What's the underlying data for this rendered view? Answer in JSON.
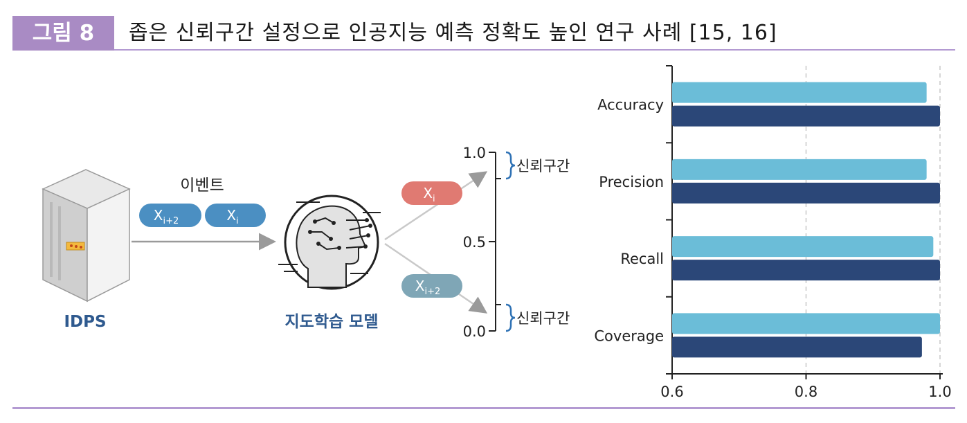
{
  "figure": {
    "label": "그림 8",
    "title": "좁은 신뢰구간 설정으로 인공지능 예측 정확도 높인 연구 사례 [15, 16]",
    "colors": {
      "label_bg": "#a98bc4",
      "rule": "#b39ad2"
    }
  },
  "diagram": {
    "source_label": "IDPS",
    "event_label": "이벤트",
    "events": [
      {
        "main": "X",
        "sub": "i+2"
      },
      {
        "main": "X",
        "sub": "i"
      }
    ],
    "model_label": "지도학습 모델",
    "outputs": [
      {
        "main": "X",
        "sub": "i",
        "color": "#e07a72"
      },
      {
        "main": "X",
        "sub": "i+2",
        "color": "#7fa6b6"
      }
    ],
    "scale_ticks": [
      "1.0",
      "0.5",
      "0.0"
    ],
    "bracket_label": "신뢰구간",
    "colors": {
      "event_pill": "#4b8fc2",
      "label_dark": "#2f5a8f",
      "bracket": "#2f72b5",
      "arrow": "#9a9a9a"
    }
  },
  "chart_data": {
    "type": "bar",
    "orientation": "horizontal",
    "categories": [
      "Accuracy",
      "Precision",
      "Recall",
      "Coverage"
    ],
    "series": [
      {
        "color": "#6bbdd8",
        "values": [
          0.98,
          0.98,
          0.99,
          1.0
        ]
      },
      {
        "color": "#2b4778",
        "values": [
          1.0,
          1.0,
          1.0,
          0.973
        ]
      }
    ],
    "xlim": [
      0.6,
      1.0
    ],
    "xticks": [
      "0.6",
      "0.8",
      "1.0"
    ],
    "grid": "dashed vertical at 0.8 and 1.0",
    "legend": "none"
  }
}
